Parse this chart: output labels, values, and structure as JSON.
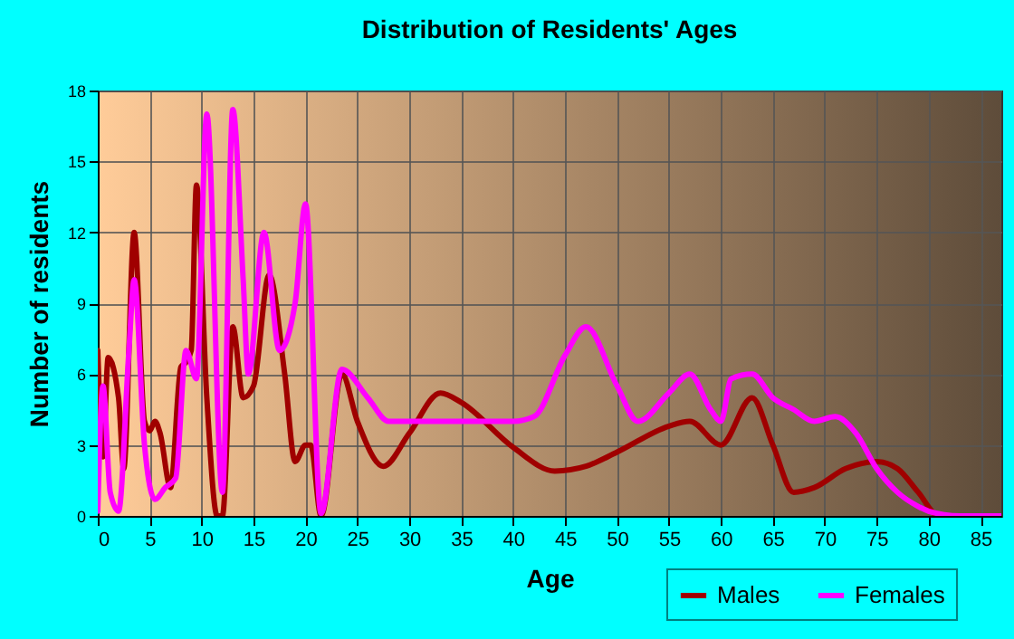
{
  "chart_data": {
    "type": "line",
    "title": "Distribution of Residents' Ages",
    "xlabel": "Age",
    "ylabel": "Number of residents",
    "xlim": [
      0,
      87
    ],
    "xticks": [
      0,
      5,
      10,
      15,
      20,
      25,
      30,
      35,
      40,
      45,
      50,
      55,
      60,
      65,
      70,
      75,
      80,
      85
    ],
    "ylim": [
      0,
      18
    ],
    "yticks": [
      0,
      3,
      6,
      9,
      12,
      15,
      18
    ],
    "grid": true,
    "legend": "bottom right",
    "marker": "none",
    "line_style": "solid",
    "series": [
      {
        "name": "Males",
        "color": "#a00000",
        "x": [
          0,
          0.5,
          1,
          2,
          2.5,
          3.5,
          4.5,
          5,
          5.5,
          6,
          7,
          8,
          8.5,
          9,
          9.5,
          10.5,
          11.5,
          12,
          13,
          14,
          15,
          16.5,
          18,
          19,
          20,
          20.5,
          21.5,
          23.5,
          25,
          27.5,
          30,
          33,
          35,
          40,
          44,
          47,
          50,
          55,
          57,
          60,
          63,
          65,
          67,
          69,
          72,
          75,
          77,
          79,
          81,
          83,
          87
        ],
        "values": [
          7,
          2.5,
          6.7,
          5,
          2,
          12,
          4,
          3.6,
          4,
          3.5,
          1.2,
          6.3,
          6.5,
          7,
          14,
          5,
          0,
          0,
          8,
          5,
          5.5,
          10.2,
          6,
          2.3,
          3,
          3,
          0,
          6,
          4,
          2.1,
          3.5,
          5.2,
          4.8,
          2.9,
          1.9,
          2.1,
          2.7,
          3.8,
          4,
          3,
          5,
          3,
          1,
          1.2,
          2,
          2.3,
          2,
          1,
          0,
          0,
          0
        ]
      },
      {
        "name": "Females",
        "color": "#ff00ff",
        "x": [
          0,
          0.5,
          1.2,
          2,
          3,
          3.5,
          4.5,
          5.5,
          6.5,
          7.5,
          8.5,
          9.5,
          10.5,
          12,
          13,
          14,
          14.5,
          16,
          17.5,
          19,
          20,
          21.5,
          23.5,
          26,
          28,
          31,
          36,
          40,
          42,
          45,
          47,
          50,
          52,
          55,
          57,
          59,
          60,
          61,
          63,
          65,
          67,
          69,
          71,
          73,
          75,
          77,
          79,
          80,
          83,
          87
        ],
        "values": [
          0.2,
          5.5,
          1,
          0.2,
          7,
          10,
          3,
          0.7,
          1.2,
          1.6,
          7,
          5.8,
          17,
          1,
          17.2,
          10,
          6,
          12,
          7,
          9,
          13.2,
          0.1,
          6.2,
          5,
          4,
          4,
          4,
          4,
          4.2,
          6.8,
          8,
          5.5,
          4,
          5.2,
          6,
          4.5,
          4,
          5.8,
          6,
          5,
          4.5,
          4,
          4.2,
          3.5,
          2,
          1,
          0.4,
          0.2,
          0,
          0
        ]
      }
    ]
  }
}
